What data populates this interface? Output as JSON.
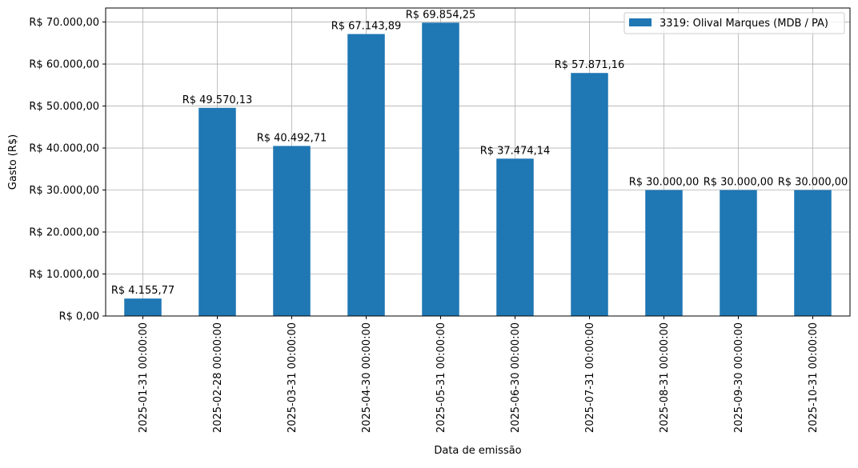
{
  "chart_data": {
    "type": "bar",
    "categories": [
      "2025-01-31 00:00:00",
      "2025-02-28 00:00:00",
      "2025-03-31 00:00:00",
      "2025-04-30 00:00:00",
      "2025-05-31 00:00:00",
      "2025-06-30 00:00:00",
      "2025-07-31 00:00:00",
      "2025-08-31 00:00:00",
      "2025-09-30 00:00:00",
      "2025-10-31 00:00:00"
    ],
    "series": [
      {
        "name": "3319: Olival Marques (MDB / PA)",
        "values": [
          4155.77,
          49570.13,
          40492.71,
          67143.89,
          69854.25,
          37474.14,
          57871.16,
          30000.0,
          30000.0,
          30000.0
        ],
        "color": "#1f77b4"
      }
    ],
    "data_labels": [
      "R$ 4.155,77",
      "R$ 49.570,13",
      "R$ 40.492,71",
      "R$ 67.143,89",
      "R$ 69.854,25",
      "R$ 37.474,14",
      "R$ 57.871,16",
      "R$ 30.000,00",
      "R$ 30.000,00",
      "R$ 30.000,00"
    ],
    "y_ticks": [
      0,
      10000,
      20000,
      30000,
      40000,
      50000,
      60000,
      70000
    ],
    "y_tick_labels": [
      "R$ 0,00",
      "R$ 10.000,00",
      "R$ 20.000,00",
      "R$ 30.000,00",
      "R$ 40.000,00",
      "R$ 50.000,00",
      "R$ 60.000,00",
      "R$ 70.000,00"
    ],
    "xlabel": "Data de emissão",
    "ylabel": "Gasto (R$)",
    "ylim": [
      0,
      73347
    ],
    "grid": true,
    "legend_position": "top-right"
  }
}
